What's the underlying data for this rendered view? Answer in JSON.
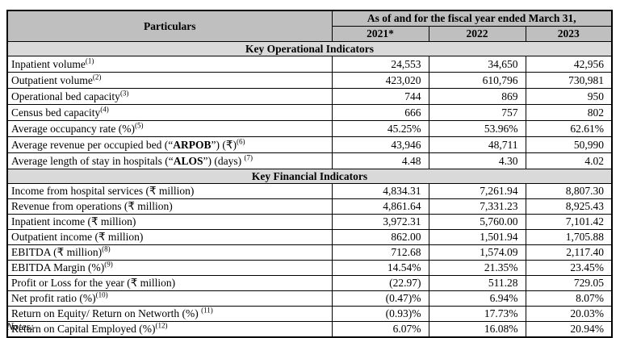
{
  "colors": {
    "header_bg": "#bfbfbf",
    "section_bg": "#d9d9d9",
    "border": "#000000"
  },
  "table": {
    "header": {
      "particulars_label": "Particulars",
      "fiscal_group_label": "As of and for the fiscal year ended March 31,",
      "years": [
        "2021*",
        "2022",
        "2023"
      ]
    },
    "sections": [
      {
        "title": "Key Operational Indicators",
        "rows": [
          {
            "parts": [
              {
                "text": "Inpatient volume"
              }
            ],
            "sup": "(1)",
            "values": [
              "24,553",
              "34,650",
              "42,956"
            ]
          },
          {
            "parts": [
              {
                "text": "Outpatient volume"
              }
            ],
            "sup": "(2)",
            "values": [
              "423,020",
              "610,796",
              "730,981"
            ]
          },
          {
            "parts": [
              {
                "text": "Operational bed capacity"
              }
            ],
            "sup": "(3)",
            "values": [
              "744",
              "869",
              "950"
            ]
          },
          {
            "parts": [
              {
                "text": "Census bed capacity"
              }
            ],
            "sup": "(4)",
            "values": [
              "666",
              "757",
              "802"
            ]
          },
          {
            "parts": [
              {
                "text": "Average occupancy rate (%)"
              }
            ],
            "sup": "(5)",
            "values": [
              "45.25%",
              "53.96%",
              "62.61%"
            ]
          },
          {
            "parts": [
              {
                "text": "Average revenue per occupied bed (“"
              },
              {
                "text": "ARPOB",
                "bold": true
              },
              {
                "text": "”) (₹)"
              }
            ],
            "sup": "(6)",
            "values": [
              "43,946",
              "48,711",
              "50,990"
            ]
          },
          {
            "parts": [
              {
                "text": "Average length of stay in hospitals (“"
              },
              {
                "text": "ALOS",
                "bold": true
              },
              {
                "text": "”) (days) "
              }
            ],
            "sup": "(7)",
            "values": [
              "4.48",
              "4.30",
              "4.02"
            ]
          }
        ]
      },
      {
        "title": "Key Financial Indicators",
        "rows": [
          {
            "parts": [
              {
                "text": "Income from hospital services (₹ million)"
              }
            ],
            "sup": "",
            "values": [
              "4,834.31",
              "7,261.94",
              "8,807.30"
            ]
          },
          {
            "parts": [
              {
                "text": "Revenue from operations (₹ million)"
              }
            ],
            "sup": "",
            "values": [
              "4,861.64",
              "7,331.23",
              "8,925.43"
            ]
          },
          {
            "parts": [
              {
                "text": "Inpatient income (₹ million)"
              }
            ],
            "sup": "",
            "values": [
              "3,972.31",
              "5,760.00",
              "7,101.42"
            ]
          },
          {
            "parts": [
              {
                "text": "Outpatient income (₹ million)"
              }
            ],
            "sup": "",
            "values": [
              "862.00",
              "1,501.94",
              "1,705.88"
            ]
          },
          {
            "parts": [
              {
                "text": "EBITDA (₹ million)"
              }
            ],
            "sup": "(8)",
            "values": [
              "712.68",
              "1,574.09",
              "2,117.40"
            ]
          },
          {
            "parts": [
              {
                "text": "EBITDA Margin (%)"
              }
            ],
            "sup": "(9)",
            "values": [
              "14.54%",
              "21.35%",
              "23.45%"
            ]
          },
          {
            "parts": [
              {
                "text": "Profit or Loss for the year (₹ million)"
              }
            ],
            "sup": "",
            "values": [
              "(22.97)",
              "511.28",
              "729.05"
            ]
          },
          {
            "parts": [
              {
                "text": "Net profit ratio (%)"
              }
            ],
            "sup": "(10)",
            "values": [
              "(0.47)%",
              "6.94%",
              "8.07%"
            ]
          },
          {
            "parts": [
              {
                "text": "Return on Equity/ Return on Networth (%) "
              }
            ],
            "sup": "(11)",
            "values": [
              "(0.93)%",
              "17.73%",
              "20.03%"
            ]
          },
          {
            "parts": [
              {
                "text": "Return on Capital Employed (%)"
              }
            ],
            "sup": "(12)",
            "values": [
              "6.07%",
              "16.08%",
              "20.94%"
            ]
          }
        ]
      }
    ]
  },
  "footer": {
    "notes_label": "Notes:"
  }
}
